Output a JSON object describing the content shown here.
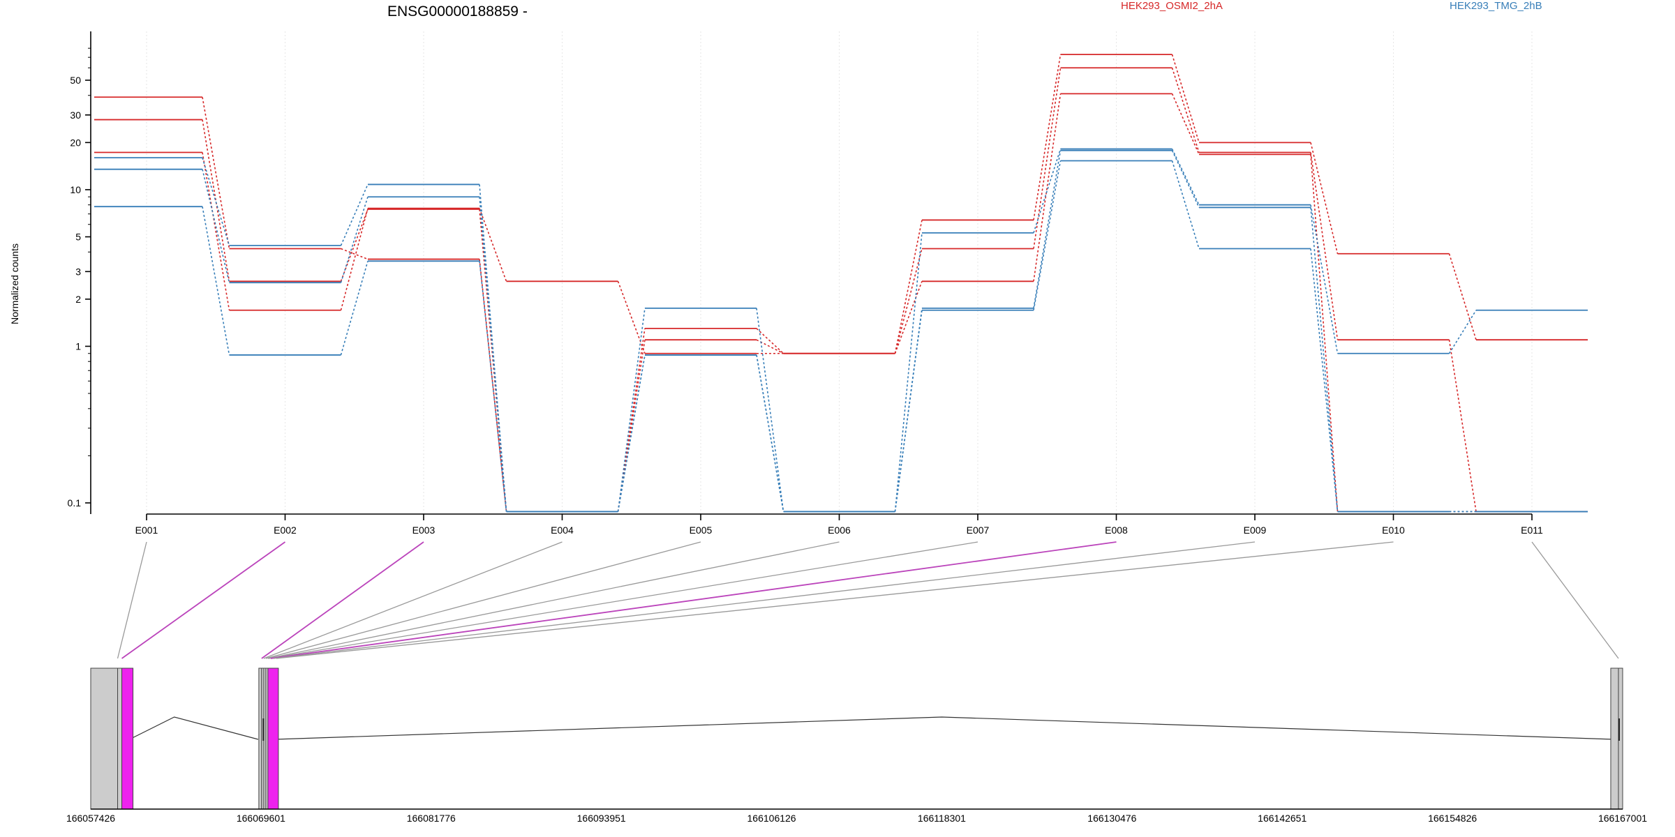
{
  "chart_data": {
    "type": "line",
    "title": "ENSG00000188859 -",
    "ylabel": "Normalized counts",
    "yscale": "log",
    "ylim": [
      0.08,
      90
    ],
    "y_tick_labels": [
      "0.1",
      "1",
      "2",
      "3",
      "5",
      "10",
      "20",
      "30",
      "50"
    ],
    "categories": [
      "E001",
      "E002",
      "E003",
      "E004",
      "E005",
      "E006",
      "E007",
      "E008",
      "E009",
      "E010",
      "E011"
    ],
    "legend": [
      {
        "label": "HEK293_OSMI2_2hA",
        "color": "#d62728"
      },
      {
        "label": "HEK293_TMG_2hB",
        "color": "#377eb8"
      }
    ],
    "series": [
      {
        "group": "HEK293_OSMI2_2hA",
        "color": "#d62728",
        "values": [
          39,
          4.2,
          3.6,
          0.088,
          1.3,
          0.9,
          6.4,
          73,
          20,
          3.9,
          1.1
        ]
      },
      {
        "group": "HEK293_OSMI2_2hA",
        "color": "#d62728",
        "values": [
          28,
          2.6,
          7.5,
          0.088,
          1.1,
          0.9,
          4.2,
          60,
          17.3,
          1.1,
          0.088
        ]
      },
      {
        "group": "HEK293_OSMI2_2hA",
        "color": "#d62728",
        "values": [
          17.3,
          1.7,
          7.6,
          2.6,
          0.9,
          0.9,
          2.6,
          41,
          16.8,
          0.088,
          0.088
        ]
      },
      {
        "group": "HEK293_TMG_2hB",
        "color": "#377eb8",
        "values": [
          16,
          4.4,
          10.8,
          0.088,
          1.75,
          0.088,
          5.3,
          18.2,
          8.0,
          0.9,
          1.7
        ]
      },
      {
        "group": "HEK293_TMG_2hB",
        "color": "#377eb8",
        "values": [
          13.5,
          2.55,
          9.0,
          0.088,
          0.88,
          0.088,
          1.75,
          17.8,
          7.7,
          0.088,
          0.088
        ]
      },
      {
        "group": "HEK293_TMG_2hB",
        "color": "#377eb8",
        "values": [
          7.8,
          0.88,
          3.5,
          0.088,
          0.88,
          0.088,
          1.7,
          15.3,
          4.2,
          0.088,
          0.088
        ]
      }
    ],
    "genome": {
      "coordinates": [
        "166057426",
        "166069601",
        "166081776",
        "166093951",
        "166106126",
        "166118301",
        "166130476",
        "166142651",
        "166154826",
        "166167001"
      ],
      "range": [
        166057426,
        166167001
      ],
      "exon_positions": [
        166059350,
        166059650,
        166069650,
        166069800,
        166069950,
        166070100,
        166070150,
        166070300,
        166070500,
        166070700,
        166166700
      ],
      "highlighted_exons": [
        "E002",
        "E003",
        "E008"
      ],
      "highlight_color": "#ee22ee",
      "feature_color": "#cccccc"
    }
  }
}
